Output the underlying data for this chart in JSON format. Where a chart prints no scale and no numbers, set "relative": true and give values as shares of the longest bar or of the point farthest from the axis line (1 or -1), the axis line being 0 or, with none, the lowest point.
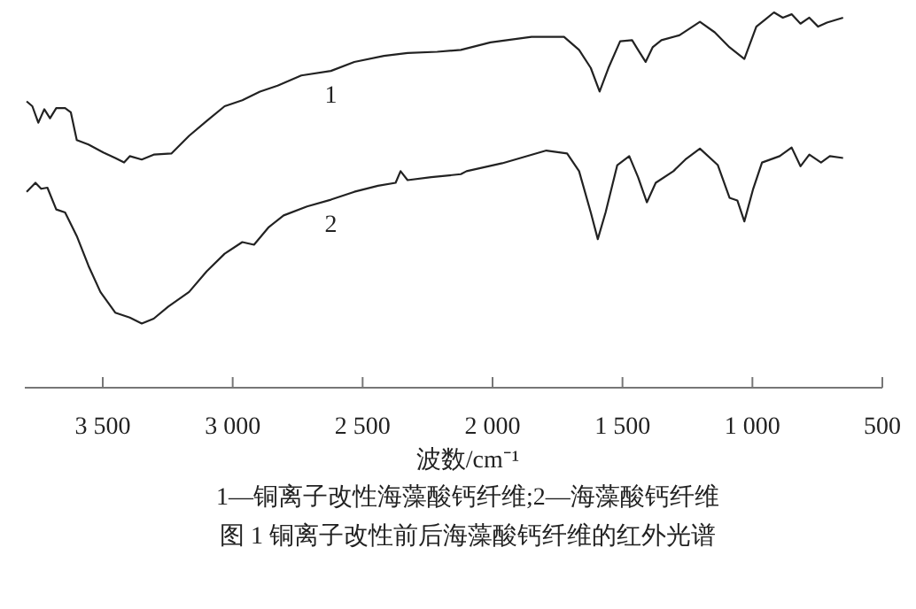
{
  "chart_data": {
    "type": "line",
    "relative": true,
    "title": "图 1 铜离子改性前后海藻酸钙纤维的红外光谱",
    "xlabel": "波数/cm⁻¹",
    "annotations": [
      "1—铜离子改性海藻酸钙纤维;2—海藻酸钙纤维"
    ],
    "xlim": [
      3800,
      500
    ],
    "xticks": [
      {
        "value": 3500,
        "label": "3 500"
      },
      {
        "value": 3000,
        "label": "3 000"
      },
      {
        "value": 2500,
        "label": "2 500"
      },
      {
        "value": 2000,
        "label": "2 000"
      },
      {
        "value": 1500,
        "label": "1 500"
      },
      {
        "value": 1000,
        "label": "1 000"
      },
      500
    ],
    "series": [
      {
        "name": "1",
        "color": "#222222",
        "x": [
          3793,
          3771,
          3748,
          3725,
          3703,
          3679,
          3645,
          3623,
          3600,
          3555,
          3498,
          3452,
          3418,
          3396,
          3350,
          3304,
          3236,
          3168,
          3100,
          3031,
          2963,
          2895,
          2827,
          2736,
          2622,
          2532,
          2418,
          2327,
          2213,
          2122,
          2008,
          1850,
          1725,
          1667,
          1622,
          1588,
          1554,
          1509,
          1463,
          1440,
          1411,
          1384,
          1350,
          1281,
          1202,
          1145,
          1088,
          1031,
          985,
          951,
          917,
          883,
          849,
          815,
          781,
          747,
          713,
          651
        ],
        "values": [
          0.763,
          0.75,
          0.706,
          0.742,
          0.718,
          0.745,
          0.745,
          0.734,
          0.66,
          0.648,
          0.627,
          0.612,
          0.6,
          0.617,
          0.608,
          0.621,
          0.624,
          0.671,
          0.711,
          0.75,
          0.766,
          0.789,
          0.805,
          0.832,
          0.844,
          0.868,
          0.884,
          0.892,
          0.895,
          0.9,
          0.92,
          0.935,
          0.935,
          0.9,
          0.852,
          0.789,
          0.852,
          0.923,
          0.926,
          0.9,
          0.868,
          0.907,
          0.926,
          0.939,
          0.975,
          0.947,
          0.907,
          0.876,
          0.962,
          0.981,
          1,
          0.986,
          0.995,
          0.97,
          0.986,
          0.962,
          0.973,
          0.986
        ]
      },
      {
        "name": "2",
        "color": "#222222",
        "x": [
          3793,
          3759,
          3737,
          3713,
          3679,
          3645,
          3600,
          3555,
          3509,
          3452,
          3396,
          3350,
          3304,
          3248,
          3168,
          3100,
          3031,
          2963,
          2918,
          2861,
          2804,
          2714,
          2622,
          2532,
          2441,
          2373,
          2354,
          2327,
          2236,
          2122,
          2100,
          1963,
          1793,
          1713,
          1667,
          1622,
          1595,
          1565,
          1520,
          1474,
          1440,
          1406,
          1372,
          1304,
          1258,
          1202,
          1133,
          1088,
          1058,
          1031,
          997,
          963,
          895,
          849,
          815,
          781,
          736,
          702,
          651
        ],
        "values": [
          0.522,
          0.546,
          0.53,
          0.533,
          0.475,
          0.467,
          0.404,
          0.325,
          0.255,
          0.2,
          0.187,
          0.171,
          0.184,
          0.216,
          0.255,
          0.31,
          0.357,
          0.388,
          0.381,
          0.428,
          0.459,
          0.483,
          0.501,
          0.522,
          0.538,
          0.546,
          0.577,
          0.553,
          0.561,
          0.569,
          0.577,
          0.598,
          0.632,
          0.624,
          0.577,
          0.467,
          0.396,
          0.467,
          0.593,
          0.617,
          0.561,
          0.494,
          0.546,
          0.577,
          0.608,
          0.637,
          0.593,
          0.506,
          0.499,
          0.443,
          0.53,
          0.6,
          0.617,
          0.64,
          0.59,
          0.621,
          0.6,
          0.617,
          0.612
        ]
      }
    ]
  }
}
